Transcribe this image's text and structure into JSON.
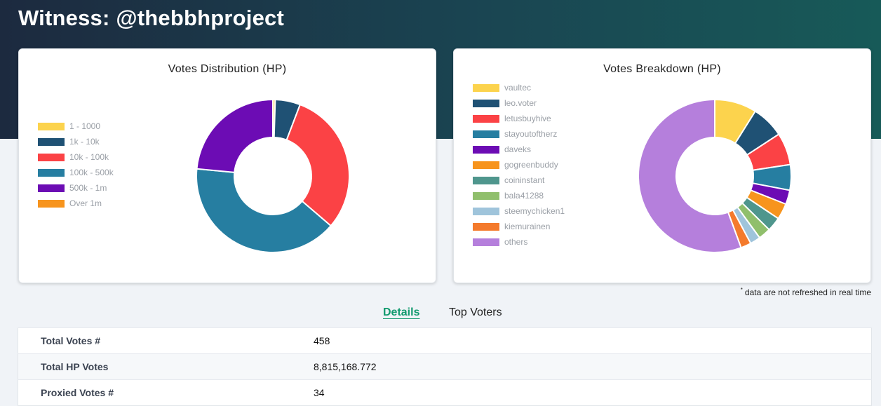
{
  "header": {
    "title": "Witness: @thebbhproject"
  },
  "distribution_card": {
    "title": "Votes Distribution (HP)",
    "legend": [
      {
        "label": "1 - 1000",
        "color": "#fcd34d"
      },
      {
        "label": "1k - 10k",
        "color": "#1f5174"
      },
      {
        "label": "10k - 100k",
        "color": "#fb4245"
      },
      {
        "label": "100k - 500k",
        "color": "#267ea1"
      },
      {
        "label": "500k - 1m",
        "color": "#6c0cb4"
      },
      {
        "label": "Over 1m",
        "color": "#f7941d"
      }
    ],
    "slices": [
      {
        "label": "1 - 1000",
        "value": 0.5,
        "color": "#fcd34d"
      },
      {
        "label": "1k - 10k",
        "value": 5.3,
        "color": "#1f5174"
      },
      {
        "label": "10k - 100k",
        "value": 30.5,
        "color": "#fb4245"
      },
      {
        "label": "100k - 500k",
        "value": 40.2,
        "color": "#267ea1"
      },
      {
        "label": "500k - 1m",
        "value": 23.5,
        "color": "#6c0cb4"
      },
      {
        "label": "Over 1m",
        "value": 0,
        "color": "#f7941d"
      }
    ]
  },
  "breakdown_card": {
    "title": "Votes Breakdown (HP)",
    "legend": [
      {
        "label": "vaultec",
        "color": "#fcd34d"
      },
      {
        "label": "leo.voter",
        "color": "#1f5174"
      },
      {
        "label": "letusbuyhive",
        "color": "#fb4245"
      },
      {
        "label": "stayoutoftherz",
        "color": "#267ea1"
      },
      {
        "label": "daveks",
        "color": "#6c0cb4"
      },
      {
        "label": "gogreenbuddy",
        "color": "#f7941d"
      },
      {
        "label": "coininstant",
        "color": "#4f968d"
      },
      {
        "label": "bala41288",
        "color": "#90bf6c"
      },
      {
        "label": "steemychicken1",
        "color": "#9fc4db"
      },
      {
        "label": "kiemurainen",
        "color": "#f47a2c"
      },
      {
        "label": "others",
        "color": "#b57fdc"
      }
    ],
    "slices": [
      {
        "label": "vaultec",
        "value": 8.9,
        "color": "#fcd34d"
      },
      {
        "label": "leo.voter",
        "value": 6.9,
        "color": "#1f5174"
      },
      {
        "label": "letusbuyhive",
        "value": 6.8,
        "color": "#fb4245"
      },
      {
        "label": "stayoutoftherz",
        "value": 5.4,
        "color": "#267ea1"
      },
      {
        "label": "daveks",
        "value": 3.0,
        "color": "#6c0cb4"
      },
      {
        "label": "gogreenbuddy",
        "value": 3.4,
        "color": "#f7941d"
      },
      {
        "label": "coininstant",
        "value": 3.0,
        "color": "#4f968d"
      },
      {
        "label": "bala41288",
        "value": 2.6,
        "color": "#90bf6c"
      },
      {
        "label": "steemychicken1",
        "value": 2.2,
        "color": "#9fc4db"
      },
      {
        "label": "kiemurainen",
        "value": 2.2,
        "color": "#f47a2c"
      },
      {
        "label": "others",
        "value": 55.6,
        "color": "#b57fdc"
      }
    ]
  },
  "note": {
    "marker": "*",
    "text": "data are not refreshed in real time"
  },
  "tabs": [
    {
      "label": "Details",
      "active": true
    },
    {
      "label": "Top Voters",
      "active": false
    }
  ],
  "details": [
    {
      "label": "Total Votes #",
      "value": "458"
    },
    {
      "label": "Total HP Votes",
      "value": "8,815,168.772"
    },
    {
      "label": "Proxied Votes #",
      "value": "34"
    }
  ]
}
